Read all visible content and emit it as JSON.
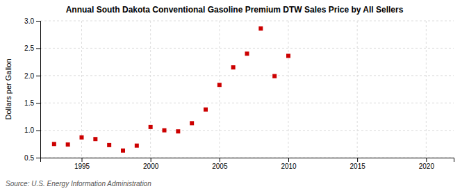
{
  "chart_data": {
    "type": "scatter",
    "title": "Annual South Dakota Conventional Gasoline Premium DTW Sales Price by All Sellers",
    "ylabel": "Dollars per Gallon",
    "source": "Source: U.S. Energy Information Administration",
    "x": [
      1993,
      1994,
      1995,
      1996,
      1997,
      1998,
      1999,
      2000,
      2001,
      2002,
      2003,
      2004,
      2005,
      2006,
      2007,
      2008,
      2009,
      2010
    ],
    "values": [
      0.75,
      0.74,
      0.87,
      0.84,
      0.73,
      0.63,
      0.72,
      1.06,
      1.0,
      0.98,
      1.13,
      1.38,
      1.83,
      2.15,
      2.4,
      2.86,
      1.99,
      2.36
    ],
    "color": "#cc0000",
    "marker": "square",
    "xlim": [
      1992,
      2022
    ],
    "ylim": [
      0.5,
      3.0
    ],
    "xticks": [
      1995,
      2000,
      2005,
      2010,
      2015,
      2020
    ],
    "yticks": [
      0.5,
      {
        "value": 1.0,
        "label": "1.0"
      },
      1.5,
      {
        "value": 2.0,
        "label": "2.0"
      },
      2.5,
      {
        "value": 3.0,
        "label": "3.0"
      }
    ],
    "grid": true
  }
}
